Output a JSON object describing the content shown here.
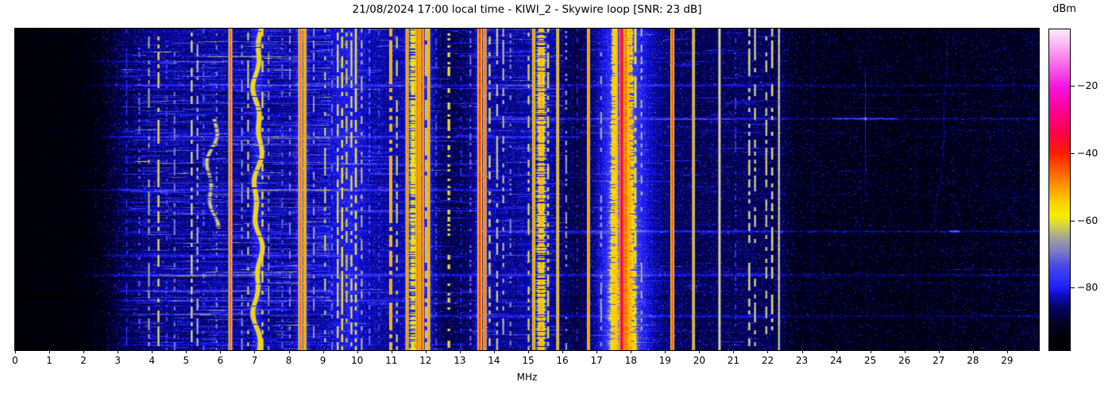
{
  "title": "21/08/2024 17:00 local time - KIWI_2 - Skywire loop [SNR: 23 dB]",
  "x_axis": {
    "label": "MHz",
    "min": 0,
    "max": 29.93,
    "ticks": [
      0,
      1,
      2,
      3,
      4,
      5,
      6,
      7,
      8,
      9,
      10,
      11,
      12,
      13,
      14,
      15,
      16,
      17,
      18,
      19,
      20,
      21,
      22,
      23,
      24,
      25,
      26,
      27,
      28,
      29
    ]
  },
  "colorbar": {
    "label": "dBm",
    "vmin": -98.5,
    "vmax": -3.3,
    "ticks": [
      -20,
      -40,
      -60,
      -80
    ],
    "gradient": [
      [
        0.0,
        "#000000"
      ],
      [
        0.07,
        "#010118"
      ],
      [
        0.13,
        "#04045e"
      ],
      [
        0.175,
        "#0d0dd0"
      ],
      [
        0.2,
        "#2222ff"
      ],
      [
        0.26,
        "#4646e8"
      ],
      [
        0.31,
        "#7c7cc4"
      ],
      [
        0.35,
        "#a2a29a"
      ],
      [
        0.4,
        "#e4de2a"
      ],
      [
        0.42,
        "#f6ee00"
      ],
      [
        0.46,
        "#ffd000"
      ],
      [
        0.51,
        "#ff9800"
      ],
      [
        0.56,
        "#ff5c00"
      ],
      [
        0.615,
        "#ff1c00"
      ],
      [
        0.68,
        "#ff004c"
      ],
      [
        0.75,
        "#ff0098"
      ],
      [
        0.82,
        "#f314e0"
      ],
      [
        0.89,
        "#f768ea"
      ],
      [
        0.95,
        "#fbb2f3"
      ],
      [
        1.0,
        "#fee9fb"
      ]
    ]
  },
  "chart_data": {
    "type": "heatmap",
    "x_unit": "MHz",
    "value_unit": "dBm",
    "x_range": [
      0,
      29.93
    ],
    "value_range": [
      -98.5,
      -3.3
    ],
    "noise_floor_profile": [
      [
        0,
        -97
      ],
      [
        1.6,
        -96.5
      ],
      [
        2.4,
        -94
      ],
      [
        3.2,
        -88
      ],
      [
        4,
        -85.5
      ],
      [
        6,
        -85
      ],
      [
        8,
        -85
      ],
      [
        9,
        -84
      ],
      [
        10.2,
        -84
      ],
      [
        11,
        -84.5
      ],
      [
        12.0,
        -85
      ],
      [
        12.45,
        -88
      ],
      [
        13.0,
        -88
      ],
      [
        13.4,
        -86
      ],
      [
        14,
        -85
      ],
      [
        15,
        -85
      ],
      [
        16,
        -87
      ],
      [
        16.5,
        -89
      ],
      [
        17.1,
        -85
      ],
      [
        17.7,
        -81
      ],
      [
        18.4,
        -83
      ],
      [
        19,
        -86.5
      ],
      [
        19.6,
        -88
      ],
      [
        20.5,
        -88
      ],
      [
        21.5,
        -87.5
      ],
      [
        22.4,
        -89
      ],
      [
        22.8,
        -92.5
      ],
      [
        24,
        -93
      ],
      [
        26,
        -93.5
      ],
      [
        28,
        -93
      ],
      [
        29.93,
        -92
      ]
    ],
    "band_glows": [
      {
        "f": 7.1,
        "sigma": 0.12,
        "boost": 4
      },
      {
        "f": 8.4,
        "sigma": 0.12,
        "boost": 4
      },
      {
        "f": 9.7,
        "sigma": 0.35,
        "boost": 3
      },
      {
        "f": 11.85,
        "sigma": 0.3,
        "boost": 5
      },
      {
        "f": 13.65,
        "sigma": 0.15,
        "boost": 4
      },
      {
        "f": 15.4,
        "sigma": 0.25,
        "boost": 3
      },
      {
        "f": 17.75,
        "sigma": 0.38,
        "boost": 9,
        "grow": true
      }
    ],
    "vertical_bands": [
      {
        "f": 3.25,
        "dbm": -76,
        "style": "dashed",
        "sigma": 0.02,
        "duty": 0.45
      },
      {
        "f": 3.62,
        "dbm": -70,
        "style": "dotted",
        "sigma": 0.02,
        "duty": 0.3
      },
      {
        "f": 3.9,
        "dbm": -64,
        "style": "dashed",
        "sigma": 0.02,
        "duty": 0.5
      },
      {
        "f": 4.18,
        "dbm": -58,
        "style": "dashed",
        "sigma": 0.02,
        "duty": 0.6
      },
      {
        "f": 4.42,
        "dbm": -72,
        "style": "dotted",
        "sigma": 0.02,
        "duty": 0.3
      },
      {
        "f": 4.65,
        "dbm": -67,
        "style": "dashed",
        "sigma": 0.02,
        "duty": 0.4
      },
      {
        "f": 5.15,
        "dbm": -58,
        "style": "dashed",
        "sigma": 0.02,
        "duty": 0.6
      },
      {
        "f": 5.32,
        "dbm": -62,
        "style": "dashed",
        "sigma": 0.02,
        "duty": 0.5
      },
      {
        "f": 5.5,
        "dbm": -70,
        "style": "dotted",
        "sigma": 0.02,
        "duty": 0.3
      },
      {
        "f": 5.75,
        "dbm": -60,
        "style": "wander",
        "sigma": 0.04,
        "duty": 0.8,
        "amp": 0.12,
        "row0": 0.28,
        "row1": 0.62
      },
      {
        "f": 5.88,
        "dbm": -67,
        "style": "dotted",
        "sigma": 0.02,
        "duty": 0.3
      },
      {
        "f": 6.28,
        "dbm": -45,
        "style": "solid",
        "sigma": 0.028,
        "duty": 1
      },
      {
        "f": 6.62,
        "dbm": -66,
        "style": "dashed",
        "sigma": 0.02,
        "duty": 0.4
      },
      {
        "f": 6.8,
        "dbm": -61,
        "style": "dashed",
        "sigma": 0.02,
        "duty": 0.5
      },
      {
        "f": 7.08,
        "dbm": -54,
        "style": "wander",
        "sigma": 0.045,
        "duty": 0.95,
        "amp": 0.09
      },
      {
        "f": 7.22,
        "dbm": -58,
        "style": "dashed",
        "sigma": 0.02,
        "duty": 0.55
      },
      {
        "f": 7.4,
        "dbm": -66,
        "style": "dashed",
        "sigma": 0.02,
        "duty": 0.4
      },
      {
        "f": 7.8,
        "dbm": -70,
        "style": "dotted",
        "sigma": 0.02,
        "duty": 0.3
      },
      {
        "f": 8.02,
        "dbm": -66,
        "style": "dashed",
        "sigma": 0.02,
        "duty": 0.4
      },
      {
        "f": 8.33,
        "dbm": -46,
        "style": "solid",
        "sigma": 0.032,
        "duty": 1
      },
      {
        "f": 8.46,
        "dbm": -49,
        "style": "solid",
        "sigma": 0.025,
        "duty": 1
      },
      {
        "f": 8.72,
        "dbm": -64,
        "style": "dashed",
        "sigma": 0.02,
        "duty": 0.4
      },
      {
        "f": 9.05,
        "dbm": -60,
        "style": "dashed",
        "sigma": 0.02,
        "duty": 0.5
      },
      {
        "f": 9.25,
        "dbm": -68,
        "style": "dashed",
        "sigma": 0.02,
        "duty": 0.4
      },
      {
        "f": 9.42,
        "dbm": -58,
        "style": "dashed",
        "sigma": 0.02,
        "duty": 0.6
      },
      {
        "f": 9.55,
        "dbm": -56,
        "style": "dashed",
        "sigma": 0.02,
        "duty": 0.65
      },
      {
        "f": 9.68,
        "dbm": -60,
        "style": "dashed",
        "sigma": 0.02,
        "duty": 0.5
      },
      {
        "f": 9.82,
        "dbm": -58,
        "style": "dashed",
        "sigma": 0.02,
        "duty": 0.6
      },
      {
        "f": 9.95,
        "dbm": -55,
        "style": "dashed",
        "sigma": 0.02,
        "duty": 0.7
      },
      {
        "f": 10.12,
        "dbm": -62,
        "style": "dashed",
        "sigma": 0.02,
        "duty": 0.5
      },
      {
        "f": 10.35,
        "dbm": -68,
        "style": "dotted",
        "sigma": 0.02,
        "duty": 0.3
      },
      {
        "f": 10.62,
        "dbm": -73,
        "style": "dotted",
        "sigma": 0.02,
        "duty": 0.3
      },
      {
        "f": 10.97,
        "dbm": -50,
        "style": "dashed",
        "sigma": 0.025,
        "duty": 0.75
      },
      {
        "f": 11.15,
        "dbm": -60,
        "style": "dashed",
        "sigma": 0.02,
        "duty": 0.5
      },
      {
        "f": 11.45,
        "dbm": -48,
        "style": "solid",
        "sigma": 0.025,
        "duty": 1
      },
      {
        "f": 11.62,
        "dbm": -56,
        "style": "fuzzy",
        "sigma": 0.05,
        "duty": 0.8
      },
      {
        "f": 11.75,
        "dbm": -46,
        "style": "solid",
        "sigma": 0.03,
        "duty": 1
      },
      {
        "f": 11.88,
        "dbm": -44,
        "style": "solid",
        "sigma": 0.03,
        "duty": 1
      },
      {
        "f": 12.0,
        "dbm": -54,
        "style": "dashed",
        "sigma": 0.02,
        "duty": 0.7
      },
      {
        "f": 12.08,
        "dbm": -50,
        "style": "solid",
        "sigma": 0.024,
        "duty": 1
      },
      {
        "f": 12.3,
        "dbm": -72,
        "style": "dotted",
        "sigma": 0.02,
        "duty": 0.3
      },
      {
        "f": 12.67,
        "dbm": -56,
        "style": "dotted",
        "sigma": 0.025,
        "duty": 0.35
      },
      {
        "f": 13.02,
        "dbm": -76,
        "style": "dotted",
        "sigma": 0.02,
        "duty": 0.25
      },
      {
        "f": 13.3,
        "dbm": -68,
        "style": "dotted",
        "sigma": 0.02,
        "duty": 0.3
      },
      {
        "f": 13.57,
        "dbm": -42,
        "style": "solid",
        "sigma": 0.035,
        "duty": 1
      },
      {
        "f": 13.72,
        "dbm": -46,
        "style": "solid",
        "sigma": 0.026,
        "duty": 1
      },
      {
        "f": 13.86,
        "dbm": -58,
        "style": "dashed",
        "sigma": 0.02,
        "duty": 0.5
      },
      {
        "f": 14.08,
        "dbm": -60,
        "style": "dashed",
        "sigma": 0.02,
        "duty": 0.5
      },
      {
        "f": 14.26,
        "dbm": -62,
        "style": "dashed",
        "sigma": 0.02,
        "duty": 0.45
      },
      {
        "f": 14.47,
        "dbm": -66,
        "style": "dotted",
        "sigma": 0.02,
        "duty": 0.3
      },
      {
        "f": 15.0,
        "dbm": -60,
        "style": "dashed",
        "sigma": 0.02,
        "duty": 0.5
      },
      {
        "f": 15.15,
        "dbm": -48,
        "style": "solid",
        "sigma": 0.025,
        "duty": 1
      },
      {
        "f": 15.37,
        "dbm": -52,
        "style": "fuzzy",
        "sigma": 0.06,
        "duty": 0.85
      },
      {
        "f": 15.57,
        "dbm": -58,
        "style": "dashed",
        "sigma": 0.02,
        "duty": 0.55
      },
      {
        "f": 15.85,
        "dbm": -50,
        "style": "solid",
        "sigma": 0.024,
        "duty": 1
      },
      {
        "f": 16.1,
        "dbm": -64,
        "style": "dotted",
        "sigma": 0.02,
        "duty": 0.35
      },
      {
        "f": 16.42,
        "dbm": -77,
        "style": "dotted",
        "sigma": 0.02,
        "duty": 0.25
      },
      {
        "f": 16.75,
        "dbm": -48,
        "style": "solid",
        "sigma": 0.024,
        "duty": 1
      },
      {
        "f": 17.12,
        "dbm": -63,
        "style": "dashed",
        "sigma": 0.02,
        "duty": 0.4
      },
      {
        "f": 17.5,
        "dbm": -54,
        "style": "fuzzy",
        "sigma": 0.05,
        "duty": 0.9,
        "grow": true
      },
      {
        "f": 17.57,
        "dbm": -52,
        "style": "solid",
        "sigma": 0.022,
        "duty": 1
      },
      {
        "f": 17.72,
        "dbm": -28,
        "style": "solid",
        "sigma": 0.026,
        "duty": 1
      },
      {
        "f": 17.84,
        "dbm": -47,
        "style": "fuzzy",
        "sigma": 0.05,
        "duty": 1,
        "grow": true
      },
      {
        "f": 17.97,
        "dbm": -52,
        "style": "fuzzy",
        "sigma": 0.055,
        "duty": 0.85,
        "grow": true
      },
      {
        "f": 18.12,
        "dbm": -56,
        "style": "dashed",
        "sigma": 0.025,
        "duty": 0.6
      },
      {
        "f": 18.3,
        "dbm": -62,
        "style": "dashed",
        "sigma": 0.02,
        "duty": 0.4
      },
      {
        "f": 19.2,
        "dbm": -44,
        "style": "solid",
        "sigma": 0.028,
        "duty": 1
      },
      {
        "f": 19.82,
        "dbm": -50,
        "style": "solid",
        "sigma": 0.022,
        "duty": 1
      },
      {
        "f": 20.58,
        "dbm": -57,
        "style": "solid",
        "sigma": 0.022,
        "duty": 1
      },
      {
        "f": 21.05,
        "dbm": -75,
        "style": "dotted",
        "sigma": 0.02,
        "duty": 0.3
      },
      {
        "f": 21.45,
        "dbm": -58,
        "style": "dashed",
        "sigma": 0.02,
        "duty": 0.55
      },
      {
        "f": 21.62,
        "dbm": -60,
        "style": "dashed",
        "sigma": 0.02,
        "duty": 0.5
      },
      {
        "f": 21.95,
        "dbm": -60,
        "style": "dashed",
        "sigma": 0.02,
        "duty": 0.5
      },
      {
        "f": 22.12,
        "dbm": -58,
        "style": "dashed",
        "sigma": 0.02,
        "duty": 0.55
      },
      {
        "f": 22.32,
        "dbm": -60,
        "style": "solid",
        "sigma": 0.02,
        "duty": 1
      },
      {
        "f": 23.3,
        "dbm": -87,
        "style": "solid",
        "sigma": 0.02,
        "duty": 1
      },
      {
        "f": 24.05,
        "dbm": -88,
        "style": "dotted",
        "sigma": 0.02,
        "duty": 0.4
      },
      {
        "f": 26.3,
        "dbm": -88,
        "style": "solid",
        "sigma": 0.02,
        "duty": 1
      },
      {
        "f": 27.42,
        "dbm": -84,
        "style": "dotted",
        "sigma": 0.02,
        "duty": 0.35
      }
    ],
    "horizontal_streaks": [
      {
        "row": 0.1,
        "f0": 2.2,
        "f1": 9.0,
        "boost": 5
      },
      {
        "row": 0.175,
        "f0": 2.0,
        "f1": 29.9,
        "boost": 6
      },
      {
        "row": 0.28,
        "f0": 13.5,
        "f1": 29.9,
        "boost": 8
      },
      {
        "row": 0.335,
        "f0": 2.5,
        "f1": 16.5,
        "boost": 6
      },
      {
        "row": 0.42,
        "f0": 7.5,
        "f1": 13.5,
        "boost": 5
      },
      {
        "row": 0.5,
        "f0": 2.0,
        "f1": 14.5,
        "boost": 6
      },
      {
        "row": 0.565,
        "f0": 3.0,
        "f1": 9.0,
        "boost": 4
      },
      {
        "row": 0.63,
        "f0": 13.5,
        "f1": 29.9,
        "boost": 8,
        "spot_f": 27.45,
        "spot_boost": 14
      },
      {
        "row": 0.705,
        "f0": 2.5,
        "f1": 9.5,
        "boost": 5
      },
      {
        "row": 0.765,
        "f0": 2.0,
        "f1": 29.9,
        "boost": 6
      },
      {
        "row": 0.845,
        "f0": 3.0,
        "f1": 12.0,
        "boost": 5
      },
      {
        "row": 0.895,
        "f0": 11.0,
        "f1": 29.9,
        "boost": 6
      }
    ],
    "artifacts": [
      {
        "type": "cross",
        "f": 24.85,
        "row": 0.28,
        "boost": 26
      },
      {
        "type": "drift",
        "f": 27.1,
        "row0": 0.02,
        "row1": 0.62,
        "boost": 8
      }
    ]
  }
}
